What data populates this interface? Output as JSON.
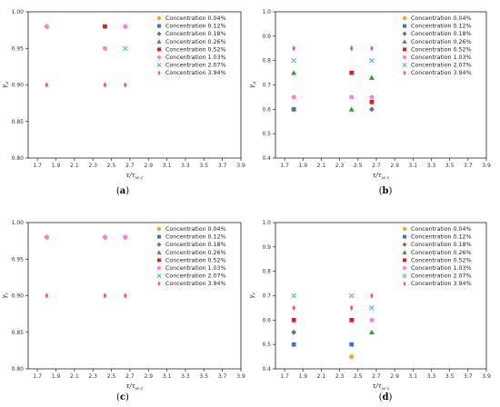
{
  "legend_names": [
    "Concentration 0.04%",
    "Concentration 0.12%",
    "Concentration 0.18%",
    "Concentration 0.26%",
    "Concentration 0.52%",
    "Concentration 1.03%",
    "Concentration 2.07%",
    "Concentration 3.94%"
  ],
  "series_style": [
    {
      "color": "#ff9f1c",
      "marker": "circle"
    },
    {
      "color": "#3a6fd8",
      "marker": "square"
    },
    {
      "color": "#707070",
      "marker": "diamond"
    },
    {
      "color": "#2ca02c",
      "marker": "triangle"
    },
    {
      "color": "#e8191c",
      "marker": "square"
    },
    {
      "color": "#ff7fd6",
      "marker": "circle"
    },
    {
      "color": "#5aaef0",
      "marker": "x"
    },
    {
      "color": "#e8549c",
      "marker": "thin-diamond"
    }
  ],
  "chart_data": [
    {
      "type": "scatter",
      "tag": "a",
      "xlabel": "τ/τ",
      "xlabel_sub": "w c",
      "ylabel": "γ",
      "ylabel_sub": "a",
      "xlim": [
        1.6,
        3.9
      ],
      "ylim": [
        0.8,
        1.0
      ],
      "xticks": [
        "1.7",
        "1.9",
        "2.1",
        "2.3",
        "2.5",
        "2.7",
        "2.9",
        "3.1",
        "3.3",
        "3.5",
        "3.7",
        "3.9"
      ],
      "yticks": [
        "0.80",
        "0.85",
        "0.90",
        "0.95",
        "1.00"
      ],
      "legend": "top-right",
      "series": [
        {
          "name": "Concentration 0.04%",
          "x": [
            2.43
          ],
          "y": [
            0.98
          ]
        },
        {
          "name": "Concentration 0.12%",
          "x": [],
          "y": []
        },
        {
          "name": "Concentration 0.18%",
          "x": [
            1.8,
            2.65
          ],
          "y": [
            0.98,
            0.98
          ]
        },
        {
          "name": "Concentration 0.26%",
          "x": [],
          "y": []
        },
        {
          "name": "Concentration 0.52%",
          "x": [
            2.43
          ],
          "y": [
            0.98
          ]
        },
        {
          "name": "Concentration 1.03%",
          "x": [
            1.8,
            2.43,
            2.65
          ],
          "y": [
            0.98,
            0.95,
            0.98
          ]
        },
        {
          "name": "Concentration 2.07%",
          "x": [
            2.65
          ],
          "y": [
            0.95
          ]
        },
        {
          "name": "Concentration 3.94%",
          "x": [
            1.8,
            2.43,
            2.65
          ],
          "y": [
            0.9,
            0.9,
            0.9
          ]
        }
      ]
    },
    {
      "type": "scatter",
      "tag": "b",
      "xlabel": "τ/τ",
      "xlabel_sub": "w c",
      "ylabel": "γ",
      "ylabel_sub": "a",
      "xlim": [
        1.6,
        3.9
      ],
      "ylim": [
        0.4,
        1.0
      ],
      "xticks": [
        "1.7",
        "1.9",
        "2.1",
        "2.3",
        "2.5",
        "2.7",
        "2.9",
        "3.1",
        "3.3",
        "3.5",
        "3.7",
        "3.9"
      ],
      "yticks": [
        "0.4",
        "0.5",
        "0.6",
        "0.7",
        "0.8",
        "0.9",
        "1.0"
      ],
      "legend": "top-right",
      "series": [
        {
          "name": "Concentration 0.04%",
          "x": [],
          "y": []
        },
        {
          "name": "Concentration 0.12%",
          "x": [
            1.8
          ],
          "y": [
            0.6
          ]
        },
        {
          "name": "Concentration 0.18%",
          "x": [
            1.8,
            2.65
          ],
          "y": [
            0.6,
            0.6
          ]
        },
        {
          "name": "Concentration 0.26%",
          "x": [
            1.8,
            2.43,
            2.65
          ],
          "y": [
            0.75,
            0.6,
            0.73
          ]
        },
        {
          "name": "Concentration 0.52%",
          "x": [
            2.43,
            2.65
          ],
          "y": [
            0.75,
            0.63
          ]
        },
        {
          "name": "Concentration 1.03%",
          "x": [
            1.8,
            2.43,
            2.65
          ],
          "y": [
            0.65,
            0.65,
            0.65
          ]
        },
        {
          "name": "Concentration 2.07%",
          "x": [
            1.8,
            2.65
          ],
          "y": [
            0.8,
            0.8
          ]
        },
        {
          "name": "Concentration 3.94%",
          "x": [
            1.8,
            2.43,
            2.65
          ],
          "y": [
            0.85,
            0.85,
            0.85
          ]
        }
      ]
    },
    {
      "type": "scatter",
      "tag": "c",
      "xlabel": "τ/τ",
      "xlabel_sub": "w c",
      "ylabel": "γ",
      "ylabel_sub": "r",
      "xlim": [
        1.6,
        3.9
      ],
      "ylim": [
        0.8,
        1.0
      ],
      "xticks": [
        "1.7",
        "1.9",
        "2.1",
        "2.3",
        "2.5",
        "2.7",
        "2.9",
        "3.1",
        "3.3",
        "3.5",
        "3.7",
        "3.9"
      ],
      "yticks": [
        "0.80",
        "0.85",
        "0.90",
        "0.95",
        "1.00"
      ],
      "legend": "top-right",
      "series": [
        {
          "name": "Concentration 0.04%",
          "x": [],
          "y": []
        },
        {
          "name": "Concentration 0.12%",
          "x": [],
          "y": []
        },
        {
          "name": "Concentration 0.18%",
          "x": [
            1.8,
            2.43,
            2.65
          ],
          "y": [
            0.98,
            0.98,
            0.98
          ]
        },
        {
          "name": "Concentration 0.26%",
          "x": [],
          "y": []
        },
        {
          "name": "Concentration 0.52%",
          "x": [],
          "y": []
        },
        {
          "name": "Concentration 1.03%",
          "x": [
            1.8,
            2.43,
            2.65
          ],
          "y": [
            0.98,
            0.98,
            0.98
          ]
        },
        {
          "name": "Concentration 2.07%",
          "x": [],
          "y": []
        },
        {
          "name": "Concentration 3.94%",
          "x": [
            1.8,
            2.43,
            2.65
          ],
          "y": [
            0.9,
            0.9,
            0.9
          ]
        }
      ]
    },
    {
      "type": "scatter",
      "tag": "d",
      "xlabel": "τ/τ",
      "xlabel_sub": "w c",
      "ylabel": "γ",
      "ylabel_sub": "r",
      "xlim": [
        1.6,
        3.9
      ],
      "ylim": [
        0.4,
        1.0
      ],
      "xticks": [
        "1.7",
        "1.9",
        "2.1",
        "2.3",
        "2.5",
        "2.7",
        "2.9",
        "3.1",
        "3.3",
        "3.5",
        "3.7",
        "3.9"
      ],
      "yticks": [
        "0.4",
        "0.5",
        "0.6",
        "0.7",
        "0.8",
        "0.9",
        "1.0"
      ],
      "legend": "top-right",
      "series": [
        {
          "name": "Concentration 0.04%",
          "x": [
            2.43
          ],
          "y": [
            0.45
          ]
        },
        {
          "name": "Concentration 0.12%",
          "x": [
            1.8,
            2.43
          ],
          "y": [
            0.5,
            0.5
          ]
        },
        {
          "name": "Concentration 0.18%",
          "x": [
            1.8
          ],
          "y": [
            0.55
          ]
        },
        {
          "name": "Concentration 0.26%",
          "x": [
            2.65
          ],
          "y": [
            0.55
          ]
        },
        {
          "name": "Concentration 0.52%",
          "x": [
            1.8,
            2.43
          ],
          "y": [
            0.6,
            0.6
          ]
        },
        {
          "name": "Concentration 1.03%",
          "x": [
            2.65
          ],
          "y": [
            0.6
          ]
        },
        {
          "name": "Concentration 2.07%",
          "x": [
            1.8,
            2.43,
            2.65
          ],
          "y": [
            0.7,
            0.7,
            0.65
          ]
        },
        {
          "name": "Concentration 3.94%",
          "x": [
            1.8,
            2.43,
            2.65
          ],
          "y": [
            0.65,
            0.65,
            0.7
          ]
        }
      ]
    }
  ]
}
